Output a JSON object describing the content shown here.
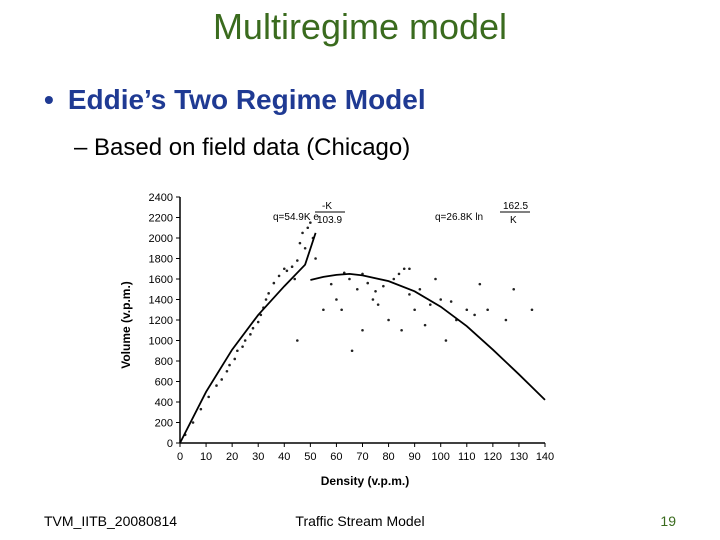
{
  "slide": {
    "title": "Multiregime model",
    "bullet": "Eddie’s Two Regime Model",
    "subbullet": "Based on field data (Chicago)",
    "bullet_marker": "•",
    "sub_marker": "–"
  },
  "footer": {
    "left": "TVM_IITB_20080814",
    "center": "Traffic Stream Model",
    "page": "19"
  },
  "chart_data": {
    "type": "scatter",
    "xlabel": "Density (v.p.m.)",
    "ylabel": "Volume (v.p.m.)",
    "xlim": [
      0,
      140
    ],
    "ylim": [
      0,
      2400
    ],
    "xticks": [
      0,
      10,
      20,
      30,
      40,
      50,
      60,
      70,
      80,
      90,
      100,
      110,
      120,
      130,
      140
    ],
    "yticks": [
      0,
      200,
      400,
      600,
      800,
      1000,
      1200,
      1400,
      1600,
      1800,
      2000,
      2200,
      2400
    ],
    "annotations": {
      "left_eq_prefix": "q=54.9K e",
      "left_eq_exp_num": "-K",
      "left_eq_exp_den": "103.9",
      "right_eq_prefix": "q=26.8K ln",
      "right_eq_num": "162.5",
      "right_eq_den": "K"
    },
    "points": [
      [
        2,
        80
      ],
      [
        5,
        200
      ],
      [
        8,
        330
      ],
      [
        11,
        450
      ],
      [
        14,
        560
      ],
      [
        16,
        620
      ],
      [
        18,
        700
      ],
      [
        19,
        760
      ],
      [
        21,
        820
      ],
      [
        22,
        900
      ],
      [
        24,
        940
      ],
      [
        25,
        1000
      ],
      [
        27,
        1060
      ],
      [
        28,
        1120
      ],
      [
        30,
        1180
      ],
      [
        31,
        1250
      ],
      [
        32,
        1320
      ],
      [
        33,
        1400
      ],
      [
        34,
        1460
      ],
      [
        36,
        1560
      ],
      [
        38,
        1630
      ],
      [
        40,
        1700
      ],
      [
        41,
        1680
      ],
      [
        43,
        1720
      ],
      [
        44,
        1600
      ],
      [
        45,
        1780
      ],
      [
        46,
        1950
      ],
      [
        47,
        2050
      ],
      [
        48,
        1900
      ],
      [
        49,
        2100
      ],
      [
        50,
        2150
      ],
      [
        51,
        2000
      ],
      [
        52,
        1800
      ],
      [
        45,
        1000
      ],
      [
        58,
        1550
      ],
      [
        60,
        1400
      ],
      [
        62,
        1300
      ],
      [
        63,
        1660
      ],
      [
        65,
        1600
      ],
      [
        66,
        900
      ],
      [
        68,
        1500
      ],
      [
        70,
        1650
      ],
      [
        72,
        1560
      ],
      [
        74,
        1400
      ],
      [
        75,
        1480
      ],
      [
        78,
        1530
      ],
      [
        80,
        1200
      ],
      [
        82,
        1600
      ],
      [
        84,
        1650
      ],
      [
        85,
        1100
      ],
      [
        86,
        1700
      ],
      [
        88,
        1450
      ],
      [
        90,
        1300
      ],
      [
        92,
        1500
      ],
      [
        94,
        1150
      ],
      [
        96,
        1350
      ],
      [
        98,
        1600
      ],
      [
        100,
        1400
      ],
      [
        102,
        1000
      ],
      [
        104,
        1380
      ],
      [
        106,
        1200
      ],
      [
        110,
        1300
      ],
      [
        113,
        1250
      ],
      [
        115,
        1550
      ],
      [
        118,
        1300
      ],
      [
        125,
        1200
      ],
      [
        128,
        1500
      ],
      [
        135,
        1300
      ],
      [
        70,
        1100
      ],
      [
        76,
        1350
      ],
      [
        88,
        1700
      ],
      [
        55,
        1300
      ]
    ],
    "fits": [
      {
        "kind": "exponential",
        "points": [
          [
            0,
            0
          ],
          [
            10,
            500
          ],
          [
            20,
            910
          ],
          [
            30,
            1250
          ],
          [
            40,
            1530
          ],
          [
            48,
            1740
          ],
          [
            52,
            2050
          ]
        ]
      },
      {
        "kind": "logarithmic",
        "points": [
          [
            50,
            1590
          ],
          [
            55,
            1620
          ],
          [
            60,
            1640
          ],
          [
            65,
            1650
          ],
          [
            70,
            1635
          ],
          [
            80,
            1580
          ],
          [
            90,
            1480
          ],
          [
            100,
            1330
          ],
          [
            110,
            1140
          ],
          [
            120,
            910
          ],
          [
            130,
            670
          ],
          [
            140,
            420
          ]
        ]
      }
    ]
  }
}
